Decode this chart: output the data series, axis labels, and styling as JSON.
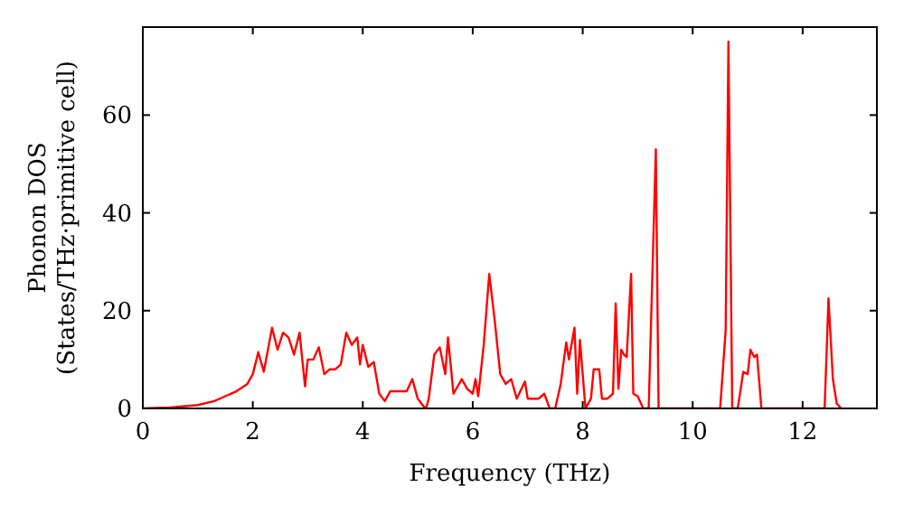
{
  "chart_data": {
    "type": "line",
    "xlabel": "Frequency (THz)",
    "ylabel": "Phonon DOS\n(States/THz·primitive cell)",
    "xlim": [
      0,
      13.35
    ],
    "ylim": [
      0,
      78
    ],
    "xticks": [
      0,
      2,
      4,
      6,
      8,
      10,
      12
    ],
    "yticks": [
      0,
      20,
      40,
      60
    ],
    "grid": false,
    "marker": "none",
    "line_style": "solid",
    "series": [
      {
        "color": "#ff0000",
        "x": [
          0,
          0.5,
          1.0,
          1.3,
          1.5,
          1.7,
          1.9,
          2.0,
          2.1,
          2.2,
          2.35,
          2.45,
          2.55,
          2.65,
          2.75,
          2.85,
          2.95,
          3.0,
          3.1,
          3.2,
          3.3,
          3.4,
          3.5,
          3.6,
          3.7,
          3.8,
          3.9,
          3.95,
          4.0,
          4.1,
          4.2,
          4.3,
          4.4,
          4.5,
          4.7,
          4.8,
          4.9,
          5.0,
          5.1,
          5.15,
          5.2,
          5.3,
          5.4,
          5.5,
          5.55,
          5.65,
          5.8,
          5.9,
          6.0,
          6.05,
          6.1,
          6.2,
          6.3,
          6.4,
          6.5,
          6.6,
          6.7,
          6.8,
          6.95,
          7.0,
          7.2,
          7.3,
          7.4,
          7.5,
          7.6,
          7.7,
          7.75,
          7.85,
          7.9,
          7.95,
          8.05,
          8.15,
          8.2,
          8.3,
          8.35,
          8.45,
          8.55,
          8.6,
          8.65,
          8.7,
          8.75,
          8.8,
          8.88,
          8.92,
          9.0,
          9.1,
          9.2,
          9.33,
          9.38,
          10.5,
          10.6,
          10.65,
          10.72,
          10.82,
          10.92,
          11.0,
          11.05,
          11.12,
          11.17,
          11.25,
          12.4,
          12.47,
          12.55,
          12.62,
          12.7
        ],
        "values": [
          0,
          0.2,
          0.7,
          1.5,
          2.5,
          3.5,
          5,
          7,
          11.5,
          7.5,
          16.5,
          12,
          15.5,
          14.5,
          11,
          15.5,
          4.5,
          10,
          10,
          12.5,
          7,
          8,
          8,
          9,
          15.5,
          13,
          14.5,
          9,
          13,
          8.5,
          9.5,
          3,
          1.5,
          3.5,
          3.5,
          3.5,
          6,
          2,
          0.5,
          0,
          2,
          11,
          12.5,
          7,
          14.5,
          3,
          6,
          4,
          3,
          6,
          2.5,
          13,
          27.5,
          18,
          7,
          5,
          6,
          2,
          5.5,
          2,
          2,
          3,
          0,
          0,
          5,
          13.5,
          10,
          16.5,
          3,
          14,
          0,
          2,
          8,
          8,
          2,
          2,
          3,
          21.5,
          4,
          12,
          11,
          10.5,
          27.5,
          3,
          2.5,
          0,
          0,
          53,
          0,
          0,
          16,
          75,
          0,
          0,
          7.5,
          7,
          12,
          10.5,
          11,
          0,
          0,
          22.5,
          6,
          1,
          0
        ]
      }
    ]
  }
}
